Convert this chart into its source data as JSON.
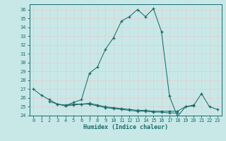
{
  "xlabel": "Humidex (Indice chaleur)",
  "bg_color": "#c8e8e8",
  "grid_color": "#e0d0d0",
  "line_color": "#1a6b6b",
  "xlim": [
    -0.5,
    23.5
  ],
  "ylim": [
    24,
    36.6
  ],
  "yticks": [
    24,
    25,
    26,
    27,
    28,
    29,
    30,
    31,
    32,
    33,
    34,
    35,
    36
  ],
  "xticks": [
    0,
    1,
    2,
    3,
    4,
    5,
    6,
    7,
    8,
    9,
    10,
    11,
    12,
    13,
    14,
    15,
    16,
    17,
    18,
    19,
    20,
    21,
    22,
    23
  ],
  "series1": [
    27.0,
    26.3,
    25.8,
    25.3,
    25.1,
    25.5,
    25.8,
    28.8,
    29.5,
    31.5,
    32.8,
    34.7,
    35.2,
    36.0,
    35.2,
    36.1,
    33.5,
    26.2,
    23.9,
    25.0,
    25.1,
    26.5,
    25.0,
    24.7
  ],
  "series2": [
    null,
    null,
    25.6,
    25.3,
    25.2,
    25.3,
    25.3,
    25.4,
    25.2,
    25.0,
    24.9,
    24.8,
    24.7,
    24.6,
    24.6,
    24.5,
    24.5,
    24.5,
    24.5,
    25.0,
    25.2,
    null,
    null,
    null
  ],
  "series3": [
    null,
    null,
    null,
    null,
    25.1,
    25.2,
    25.3,
    25.3,
    25.1,
    24.9,
    24.8,
    24.7,
    24.6,
    24.5,
    24.5,
    24.4,
    24.4,
    24.3,
    24.3,
    null,
    null,
    null,
    null,
    null
  ]
}
